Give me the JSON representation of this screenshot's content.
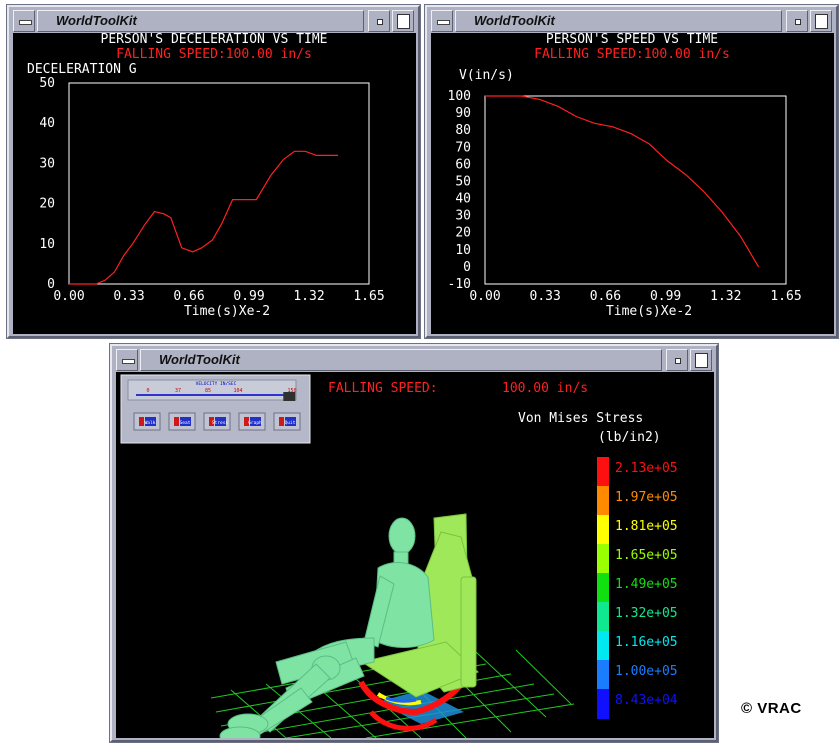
{
  "windows": {
    "decel": {
      "title": "WorldToolKit"
    },
    "speed": {
      "title": "WorldToolKit"
    },
    "sim": {
      "title": "WorldToolKit"
    }
  },
  "chart_data": [
    {
      "type": "line",
      "title": "PERSON'S DECELERATION VS TIME",
      "subtitle": "FALLING SPEED:100.00 in/s",
      "ylabel": "DECELERATION G",
      "xlabel": "Time(s)Xe-2",
      "xlim": [
        0,
        1.65
      ],
      "ylim": [
        0,
        50
      ],
      "xticks": [
        "0.00",
        "0.33",
        "0.66",
        "0.99",
        "1.32",
        "1.65"
      ],
      "yticks": [
        "0",
        "10",
        "20",
        "30",
        "40",
        "50"
      ],
      "grid": false,
      "line_color": "#ff2020",
      "x": [
        0.0,
        0.15,
        0.2,
        0.25,
        0.3,
        0.35,
        0.42,
        0.47,
        0.52,
        0.56,
        0.62,
        0.68,
        0.73,
        0.79,
        0.84,
        0.9,
        0.96,
        1.03,
        1.11,
        1.18,
        1.24,
        1.3,
        1.36,
        1.42,
        1.48
      ],
      "y": [
        0,
        0,
        1,
        3,
        7,
        10,
        15,
        18,
        17.5,
        16.5,
        9,
        8,
        9,
        11,
        15,
        21,
        21,
        21,
        27,
        31,
        33,
        33,
        32,
        32,
        32
      ]
    },
    {
      "type": "line",
      "title": "PERSON'S SPEED VS TIME",
      "subtitle": "FALLING SPEED:100.00 in/s",
      "ylabel": "V(in/s)",
      "xlabel": "Time(s)Xe-2",
      "xlim": [
        0,
        1.65
      ],
      "ylim": [
        -10,
        100
      ],
      "xticks": [
        "0.00",
        "0.33",
        "0.66",
        "0.99",
        "1.32",
        "1.65"
      ],
      "yticks": [
        "100",
        "90",
        "80",
        "70",
        "60",
        "50",
        "40",
        "30",
        "20",
        "10",
        "0",
        "-10"
      ],
      "grid": false,
      "line_color": "#ff2020",
      "x": [
        0.0,
        0.2,
        0.3,
        0.4,
        0.5,
        0.6,
        0.7,
        0.8,
        0.9,
        1.0,
        1.1,
        1.2,
        1.3,
        1.4,
        1.5
      ],
      "y": [
        100,
        100,
        98,
        94,
        88,
        84,
        82,
        78,
        72,
        62,
        54,
        44,
        32,
        18,
        0
      ]
    }
  ],
  "simulation": {
    "falling_speed_label": "FALLING SPEED:",
    "falling_speed_value": "100.00 in/s",
    "slider": {
      "ticks": [
        "0",
        "37",
        "85",
        "104",
        "150"
      ],
      "caption": "VELOCITY IN/SEC",
      "level": 0.97
    },
    "tool_buttons": [
      "Walk",
      "Seat",
      "Stress",
      "Graph",
      "Quit"
    ],
    "legend": {
      "title_line1": "Von Mises Stress",
      "title_line2": "(lb/in2)",
      "entries": [
        {
          "label": "2.13e+05",
          "color": "#ff1010"
        },
        {
          "label": "1.97e+05",
          "color": "#ff8a00"
        },
        {
          "label": "1.81e+05",
          "color": "#ffff00"
        },
        {
          "label": "1.65e+05",
          "color": "#9aff00"
        },
        {
          "label": "1.49e+05",
          "color": "#10e010"
        },
        {
          "label": "1.32e+05",
          "color": "#10e890"
        },
        {
          "label": "1.16e+05",
          "color": "#00e8f0"
        },
        {
          "label": "1.00e+05",
          "color": "#1a7cff"
        },
        {
          "label": "8.43e+04",
          "color": "#1010ff"
        }
      ]
    }
  },
  "copyright": "© VRAC"
}
